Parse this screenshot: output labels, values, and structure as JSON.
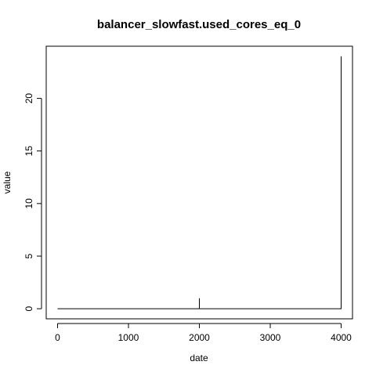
{
  "chart_data": {
    "type": "line",
    "title": "balancer_slowfast.used_cores_eq_0",
    "xlabel": "date",
    "ylabel": "value",
    "xlim": [
      -160,
      4160
    ],
    "ylim": [
      -0.96,
      24.96
    ],
    "x_ticks": [
      0,
      1000,
      2000,
      3000,
      4000
    ],
    "y_ticks": [
      0,
      5,
      10,
      15,
      20
    ],
    "grid": false,
    "legend": "none",
    "series": [
      {
        "points": [
          [
            0,
            0
          ],
          [
            2000,
            0
          ],
          [
            2000,
            1
          ],
          [
            2000,
            0
          ],
          [
            4000,
            0
          ],
          [
            4000,
            24
          ]
        ]
      }
    ]
  }
}
